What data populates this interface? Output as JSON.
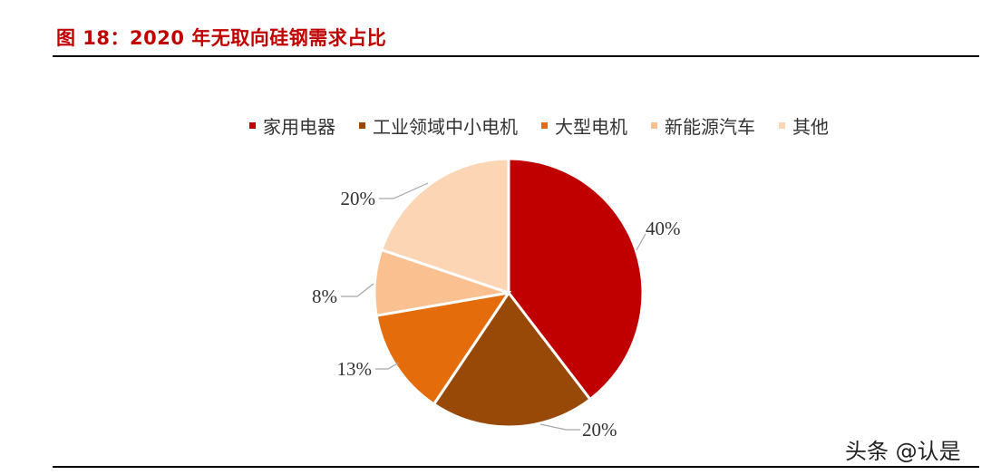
{
  "figure_title": "图 18：2020 年无取向硅钢需求占比",
  "watermark": "头条 @认是",
  "chart_data": {
    "type": "pie",
    "labels": [
      "家用电器",
      "工业领域中小电机",
      "大型电机",
      "新能源汽车",
      "其他"
    ],
    "values": [
      40,
      20,
      13,
      8,
      20
    ],
    "data_labels": [
      "40%",
      "20%",
      "13%",
      "8%",
      "20%"
    ],
    "colors": [
      "#c00000",
      "#984807",
      "#e46c0a",
      "#fac090",
      "#fcd5b5"
    ],
    "legend_position": "top",
    "start_angle": "12 o'clock",
    "direction": "clockwise"
  }
}
